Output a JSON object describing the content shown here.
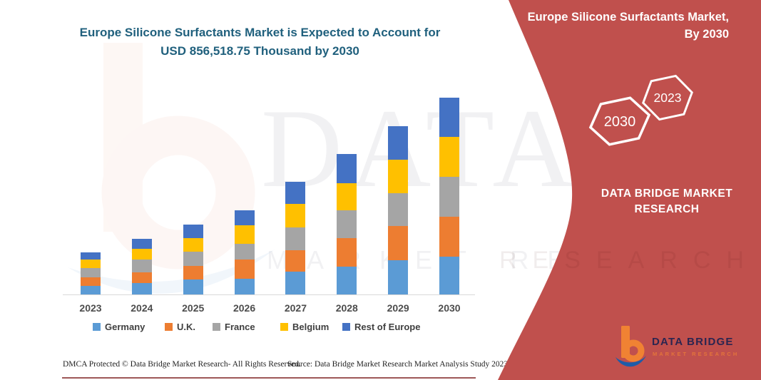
{
  "header": {
    "title_line1": "Europe Silicone Surfactants Market is Expected to Account for",
    "title_line2": "USD 856,518.75 Thousand by 2030"
  },
  "chart_data": {
    "type": "bar",
    "stacked": true,
    "title": "Europe Silicone Surfactants Market is Expected to Account for USD 856,518.75 Thousand by 2030",
    "unit": "USD Thousand",
    "x_axis": "Year",
    "y_axis_visible": false,
    "gridlines": false,
    "legend_position": "bottom",
    "categories": [
      "2023",
      "2024",
      "2025",
      "2026",
      "2027",
      "2028",
      "2029",
      "2030"
    ],
    "series": [
      {
        "name": "Germany",
        "color": "#5B9BD5",
        "values": [
          36300,
          48700,
          65100,
          69100,
          98300,
          121800,
          148800,
          165200
        ]
      },
      {
        "name": "U.K.",
        "color": "#ED7D31",
        "values": [
          38100,
          47400,
          58900,
          83700,
          93000,
          124000,
          149700,
          172700
        ]
      },
      {
        "name": "France",
        "color": "#A5A5A5",
        "values": [
          39400,
          55800,
          62000,
          67300,
          99200,
          120900,
          142600,
          172700
        ]
      },
      {
        "name": "Belgium",
        "color": "#FFC000",
        "values": [
          38100,
          47400,
          58900,
          79700,
          103200,
          116900,
          144800,
          173600
        ]
      },
      {
        "name": "Rest of Europe",
        "color": "#4472C4",
        "values": [
          31000,
          43400,
          59800,
          67300,
          95200,
          127100,
          146600,
          172318.75
        ]
      }
    ],
    "total_2030": 856518.75
  },
  "sidebar": {
    "title_line1": "Europe Silicone Surfactants Market,",
    "title_line2": "By 2030",
    "badge_front": "2030",
    "badge_back": "2023",
    "brand": "DATA BRIDGE MARKET RESEARCH",
    "logo_title": "DATA BRIDGE",
    "logo_subtitle": "MARKET RESEARCH"
  },
  "watermark": {
    "line1": "DATA BRIDGE",
    "line2": "MARKET RESEARCH",
    "line2_red": "RESEARCH"
  },
  "footer": {
    "left": "DMCA Protected © Data Bridge Market Research-  All Rights Reserved.",
    "right": "Source: Data Bridge Market Research  Market Analysis Study 2023"
  },
  "colors": {
    "sidebar_red": "#C0504D",
    "title_teal": "#20607D",
    "axis_label": "#4D4D4D",
    "legend_text": "#404040",
    "axis_line": "#D9D9D9",
    "footer_text": "#1F1F1F",
    "footer_rule": "#8C3A3A",
    "logo_orange": "#F08233",
    "logo_blue": "#1E5CA8",
    "logo_navy": "#2B2550"
  }
}
